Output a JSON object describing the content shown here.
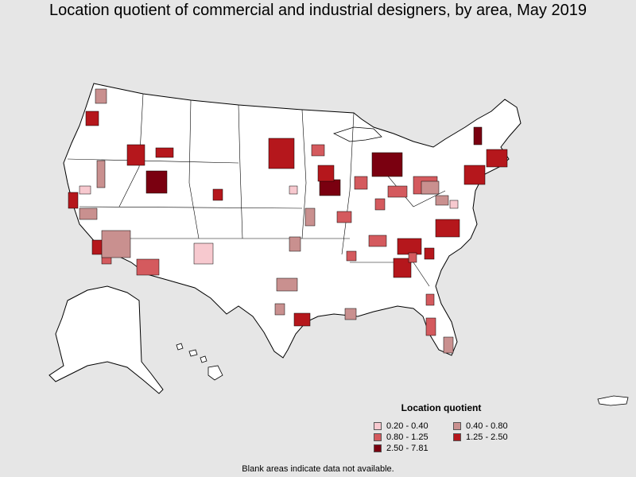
{
  "title": "Location quotient of commercial and industrial designers, by area, May 2019",
  "legend": {
    "title": "Location quotient",
    "items": [
      {
        "label": "0.20 - 0.40",
        "color": "#f7c9cf"
      },
      {
        "label": "0.40 - 0.80",
        "color": "#c9908f"
      },
      {
        "label": "0.80 - 1.25",
        "color": "#d45a5e"
      },
      {
        "label": "1.25 - 2.50",
        "color": "#b5171c"
      },
      {
        "label": "2.50 - 7.81",
        "color": "#7a0010"
      }
    ]
  },
  "note": "Blank areas indicate data not available.",
  "colors": {
    "background": "#e6e6e6",
    "land": "#ffffff",
    "border": "#000000"
  }
}
